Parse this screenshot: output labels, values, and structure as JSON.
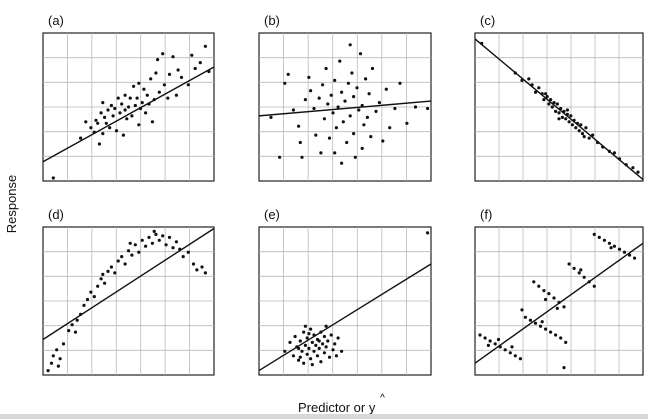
{
  "figure": {
    "ylabel": "Response",
    "xlabel": "Predictor or ",
    "xlabel_symbol": "y"
  },
  "colors": {
    "points": "#111111",
    "grid": "#b9b9b9",
    "frame": "#222222",
    "line": "#111111"
  },
  "chart_data": [
    {
      "type": "scatter",
      "label": "(a)",
      "xlim": [
        0,
        10
      ],
      "ylim": [
        0,
        10
      ],
      "grid": true,
      "fit": {
        "x": [
          0,
          10
        ],
        "y": [
          1.3,
          7.7
        ]
      },
      "points": [
        [
          0.6,
          0.2
        ],
        [
          2.2,
          2.9
        ],
        [
          2.5,
          4.0
        ],
        [
          2.8,
          3.6
        ],
        [
          3.0,
          3.3
        ],
        [
          3.1,
          4.1
        ],
        [
          3.2,
          3.9
        ],
        [
          3.3,
          2.5
        ],
        [
          3.4,
          4.6
        ],
        [
          3.5,
          3.2
        ],
        [
          3.5,
          5.3
        ],
        [
          3.6,
          4.3
        ],
        [
          3.7,
          3.9
        ],
        [
          3.8,
          4.8
        ],
        [
          3.9,
          3.6
        ],
        [
          4.0,
          5.1
        ],
        [
          4.1,
          4.4
        ],
        [
          4.2,
          4.9
        ],
        [
          4.3,
          3.4
        ],
        [
          4.4,
          5.6
        ],
        [
          4.5,
          4.6
        ],
        [
          4.6,
          5.2
        ],
        [
          4.7,
          3.1
        ],
        [
          4.8,
          4.8
        ],
        [
          4.8,
          5.8
        ],
        [
          4.9,
          4.2
        ],
        [
          5.0,
          5.0
        ],
        [
          5.1,
          5.6
        ],
        [
          5.2,
          4.4
        ],
        [
          5.3,
          6.4
        ],
        [
          5.4,
          5.1
        ],
        [
          5.5,
          5.6
        ],
        [
          5.6,
          3.8
        ],
        [
          5.6,
          6.6
        ],
        [
          5.7,
          4.9
        ],
        [
          5.8,
          5.3
        ],
        [
          5.9,
          6.2
        ],
        [
          6.0,
          4.6
        ],
        [
          6.1,
          5.8
        ],
        [
          6.2,
          5.2
        ],
        [
          6.3,
          6.9
        ],
        [
          6.4,
          4.0
        ],
        [
          6.5,
          5.5
        ],
        [
          6.6,
          7.3
        ],
        [
          6.7,
          8.2
        ],
        [
          6.8,
          6.0
        ],
        [
          7.0,
          8.6
        ],
        [
          7.1,
          6.5
        ],
        [
          7.3,
          5.6
        ],
        [
          7.4,
          7.2
        ],
        [
          7.6,
          8.4
        ],
        [
          7.8,
          5.8
        ],
        [
          8.1,
          7.0
        ],
        [
          8.5,
          6.5
        ],
        [
          8.7,
          8.5
        ],
        [
          8.9,
          7.6
        ],
        [
          9.2,
          8.0
        ],
        [
          9.5,
          9.1
        ],
        [
          9.7,
          7.4
        ],
        [
          7.9,
          7.5
        ]
      ]
    },
    {
      "type": "scatter",
      "label": "(b)",
      "xlim": [
        0,
        10
      ],
      "ylim": [
        0,
        10
      ],
      "grid": true,
      "fit": {
        "x": [
          0,
          10
        ],
        "y": [
          4.4,
          5.4
        ]
      },
      "points": [
        [
          0.7,
          4.3
        ],
        [
          1.2,
          1.6
        ],
        [
          1.5,
          6.6
        ],
        [
          1.7,
          7.2
        ],
        [
          2.0,
          4.8
        ],
        [
          2.3,
          3.7
        ],
        [
          2.4,
          2.6
        ],
        [
          2.5,
          1.6
        ],
        [
          2.7,
          5.5
        ],
        [
          2.9,
          7.0
        ],
        [
          3.0,
          6.1
        ],
        [
          3.2,
          4.9
        ],
        [
          3.3,
          3.1
        ],
        [
          3.5,
          5.6
        ],
        [
          3.6,
          1.9
        ],
        [
          3.7,
          6.5
        ],
        [
          3.8,
          4.2
        ],
        [
          3.9,
          7.6
        ],
        [
          4.0,
          5.2
        ],
        [
          4.1,
          2.9
        ],
        [
          4.2,
          5.8
        ],
        [
          4.3,
          4.6
        ],
        [
          4.4,
          6.8
        ],
        [
          4.5,
          3.6
        ],
        [
          4.6,
          5.0
        ],
        [
          4.7,
          8.1
        ],
        [
          4.8,
          1.2
        ],
        [
          4.8,
          6.0
        ],
        [
          4.9,
          4.0
        ],
        [
          5.0,
          5.4
        ],
        [
          5.1,
          2.6
        ],
        [
          5.2,
          6.6
        ],
        [
          5.3,
          4.4
        ],
        [
          5.4,
          7.3
        ],
        [
          5.5,
          3.2
        ],
        [
          5.5,
          5.7
        ],
        [
          5.6,
          1.6
        ],
        [
          5.7,
          6.3
        ],
        [
          5.8,
          4.8
        ],
        [
          5.9,
          8.6
        ],
        [
          6.0,
          2.2
        ],
        [
          6.0,
          5.1
        ],
        [
          6.1,
          3.8
        ],
        [
          6.2,
          6.9
        ],
        [
          6.3,
          4.3
        ],
        [
          6.4,
          5.9
        ],
        [
          6.5,
          3.0
        ],
        [
          6.6,
          7.6
        ],
        [
          6.8,
          4.7
        ],
        [
          7.0,
          5.3
        ],
        [
          7.2,
          2.7
        ],
        [
          7.4,
          6.2
        ],
        [
          7.6,
          3.6
        ],
        [
          7.9,
          4.9
        ],
        [
          8.2,
          6.6
        ],
        [
          8.6,
          3.9
        ],
        [
          9.1,
          5.0
        ],
        [
          9.8,
          4.9
        ],
        [
          5.3,
          9.2
        ],
        [
          4.4,
          1.9
        ]
      ]
    },
    {
      "type": "scatter",
      "label": "(c)",
      "xlim": [
        0,
        10
      ],
      "ylim": [
        0,
        10
      ],
      "grid": true,
      "fit": {
        "x": [
          0,
          10
        ],
        "y": [
          9.6,
          0.1
        ]
      },
      "points": [
        [
          0.4,
          9.3
        ],
        [
          2.4,
          7.3
        ],
        [
          2.8,
          6.8
        ],
        [
          3.4,
          6.5
        ],
        [
          3.6,
          6.0
        ],
        [
          3.8,
          6.3
        ],
        [
          4.0,
          5.9
        ],
        [
          4.1,
          5.5
        ],
        [
          4.3,
          5.7
        ],
        [
          4.4,
          5.2
        ],
        [
          4.5,
          5.5
        ],
        [
          4.6,
          5.0
        ],
        [
          4.7,
          5.3
        ],
        [
          4.8,
          4.7
        ],
        [
          4.9,
          5.2
        ],
        [
          5.0,
          4.6
        ],
        [
          5.1,
          4.9
        ],
        [
          5.2,
          4.3
        ],
        [
          5.3,
          4.7
        ],
        [
          5.4,
          4.2
        ],
        [
          5.5,
          4.5
        ],
        [
          5.6,
          4.0
        ],
        [
          5.7,
          4.4
        ],
        [
          5.8,
          3.8
        ],
        [
          5.9,
          4.1
        ],
        [
          6.0,
          3.6
        ],
        [
          6.1,
          3.9
        ],
        [
          6.2,
          3.4
        ],
        [
          6.3,
          3.8
        ],
        [
          6.4,
          3.2
        ],
        [
          6.6,
          3.6
        ],
        [
          6.8,
          2.9
        ],
        [
          7.0,
          3.1
        ],
        [
          7.3,
          2.6
        ],
        [
          7.6,
          2.3
        ],
        [
          8.0,
          2.0
        ],
        [
          8.3,
          1.9
        ],
        [
          8.6,
          1.5
        ],
        [
          9.0,
          1.1
        ],
        [
          9.4,
          0.9
        ],
        [
          9.7,
          0.6
        ],
        [
          5.0,
          4.2
        ],
        [
          5.5,
          4.8
        ],
        [
          4.2,
          5.9
        ],
        [
          6.5,
          3.0
        ],
        [
          3.2,
          6.9
        ]
      ]
    },
    {
      "type": "scatter",
      "label": "(d)",
      "xlim": [
        0,
        10
      ],
      "ylim": [
        0,
        10
      ],
      "grid": true,
      "fit": {
        "x": [
          0,
          10
        ],
        "y": [
          2.4,
          9.9
        ]
      },
      "points": [
        [
          0.3,
          0.3
        ],
        [
          0.5,
          0.8
        ],
        [
          0.6,
          1.3
        ],
        [
          0.8,
          1.7
        ],
        [
          1.0,
          1.1
        ],
        [
          1.2,
          2.1
        ],
        [
          1.5,
          3.0
        ],
        [
          1.7,
          3.4
        ],
        [
          1.9,
          2.9
        ],
        [
          2.2,
          4.1
        ],
        [
          2.4,
          4.7
        ],
        [
          2.6,
          5.1
        ],
        [
          2.8,
          5.6
        ],
        [
          3.0,
          5.3
        ],
        [
          3.2,
          6.0
        ],
        [
          3.4,
          6.5
        ],
        [
          3.6,
          6.2
        ],
        [
          3.8,
          7.0
        ],
        [
          4.0,
          7.3
        ],
        [
          4.2,
          6.9
        ],
        [
          4.4,
          7.7
        ],
        [
          4.6,
          8.0
        ],
        [
          4.8,
          7.5
        ],
        [
          5.0,
          8.4
        ],
        [
          5.2,
          8.1
        ],
        [
          5.4,
          8.8
        ],
        [
          5.6,
          8.3
        ],
        [
          5.8,
          9.1
        ],
        [
          6.0,
          8.7
        ],
        [
          6.2,
          9.3
        ],
        [
          6.4,
          8.9
        ],
        [
          6.6,
          9.5
        ],
        [
          6.8,
          9.1
        ],
        [
          7.0,
          9.4
        ],
        [
          7.2,
          8.8
        ],
        [
          7.4,
          9.3
        ],
        [
          7.6,
          8.6
        ],
        [
          7.8,
          9.0
        ],
        [
          8.0,
          8.5
        ],
        [
          8.2,
          8.0
        ],
        [
          8.5,
          8.3
        ],
        [
          8.8,
          7.5
        ],
        [
          9.0,
          7.1
        ],
        [
          9.3,
          7.3
        ],
        [
          9.5,
          6.9
        ],
        [
          0.9,
          0.6
        ],
        [
          2.0,
          3.7
        ],
        [
          3.5,
          6.8
        ],
        [
          5.1,
          8.9
        ],
        [
          6.5,
          9.7
        ]
      ]
    },
    {
      "type": "scatter",
      "label": "(e)",
      "xlim": [
        0,
        10
      ],
      "ylim": [
        0,
        10
      ],
      "grid": true,
      "fit": {
        "x": [
          0,
          10
        ],
        "y": [
          0.3,
          7.5
        ]
      },
      "points": [
        [
          9.8,
          9.6
        ],
        [
          1.5,
          1.6
        ],
        [
          1.8,
          2.2
        ],
        [
          2.0,
          1.3
        ],
        [
          2.1,
          2.6
        ],
        [
          2.2,
          1.9
        ],
        [
          2.3,
          1.0
        ],
        [
          2.4,
          2.3
        ],
        [
          2.5,
          1.6
        ],
        [
          2.6,
          2.9
        ],
        [
          2.6,
          0.8
        ],
        [
          2.7,
          2.0
        ],
        [
          2.8,
          1.4
        ],
        [
          2.8,
          2.5
        ],
        [
          2.9,
          1.8
        ],
        [
          3.0,
          3.1
        ],
        [
          3.0,
          1.1
        ],
        [
          3.1,
          2.2
        ],
        [
          3.2,
          1.6
        ],
        [
          3.2,
          2.7
        ],
        [
          3.3,
          2.0
        ],
        [
          3.4,
          1.3
        ],
        [
          3.4,
          2.4
        ],
        [
          3.5,
          1.8
        ],
        [
          3.6,
          2.9
        ],
        [
          3.6,
          0.9
        ],
        [
          3.7,
          2.1
        ],
        [
          3.8,
          1.5
        ],
        [
          3.8,
          2.6
        ],
        [
          3.9,
          1.9
        ],
        [
          4.0,
          2.3
        ],
        [
          4.1,
          1.2
        ],
        [
          4.2,
          2.7
        ],
        [
          4.3,
          1.7
        ],
        [
          4.4,
          2.1
        ],
        [
          4.6,
          2.5
        ],
        [
          4.8,
          1.6
        ],
        [
          2.3,
          1.8
        ],
        [
          2.9,
          2.8
        ],
        [
          3.5,
          2.3
        ],
        [
          3.1,
          0.7
        ],
        [
          2.4,
          1.2
        ],
        [
          3.9,
          3.3
        ],
        [
          4.5,
          1.3
        ],
        [
          2.7,
          3.3
        ]
      ]
    },
    {
      "type": "scatter",
      "label": "(f)",
      "xlim": [
        0,
        10
      ],
      "ylim": [
        0,
        10
      ],
      "grid": true,
      "fit": {
        "x": [
          0,
          10
        ],
        "y": [
          0.8,
          8.9
        ]
      },
      "points": [
        [
          0.3,
          2.7
        ],
        [
          0.6,
          2.5
        ],
        [
          0.9,
          2.3
        ],
        [
          1.2,
          2.1
        ],
        [
          1.5,
          1.9
        ],
        [
          1.8,
          1.7
        ],
        [
          2.1,
          1.5
        ],
        [
          2.4,
          1.3
        ],
        [
          2.7,
          1.1
        ],
        [
          2.2,
          1.9
        ],
        [
          1.4,
          2.4
        ],
        [
          0.8,
          2.0
        ],
        [
          3.0,
          3.9
        ],
        [
          3.3,
          3.7
        ],
        [
          3.6,
          3.5
        ],
        [
          3.9,
          3.3
        ],
        [
          4.2,
          3.1
        ],
        [
          4.5,
          2.9
        ],
        [
          4.8,
          2.7
        ],
        [
          5.1,
          2.5
        ],
        [
          5.4,
          2.2
        ],
        [
          4.0,
          3.6
        ],
        [
          5.3,
          0.5
        ],
        [
          2.8,
          4.4
        ],
        [
          3.5,
          6.3
        ],
        [
          3.8,
          6.0
        ],
        [
          4.1,
          5.7
        ],
        [
          4.4,
          5.5
        ],
        [
          4.7,
          5.2
        ],
        [
          5.0,
          4.9
        ],
        [
          5.3,
          4.6
        ],
        [
          4.2,
          5.1
        ],
        [
          5.6,
          7.5
        ],
        [
          5.9,
          7.2
        ],
        [
          6.2,
          6.9
        ],
        [
          6.5,
          6.6
        ],
        [
          6.8,
          6.3
        ],
        [
          7.1,
          6.0
        ],
        [
          6.3,
          7.1
        ],
        [
          7.1,
          9.5
        ],
        [
          7.4,
          9.3
        ],
        [
          7.7,
          9.1
        ],
        [
          8.0,
          8.9
        ],
        [
          8.3,
          8.7
        ],
        [
          8.6,
          8.5
        ],
        [
          8.9,
          8.3
        ],
        [
          9.2,
          8.1
        ],
        [
          9.5,
          7.9
        ],
        [
          8.1,
          8.6
        ],
        [
          4.9,
          4.5
        ]
      ]
    }
  ]
}
